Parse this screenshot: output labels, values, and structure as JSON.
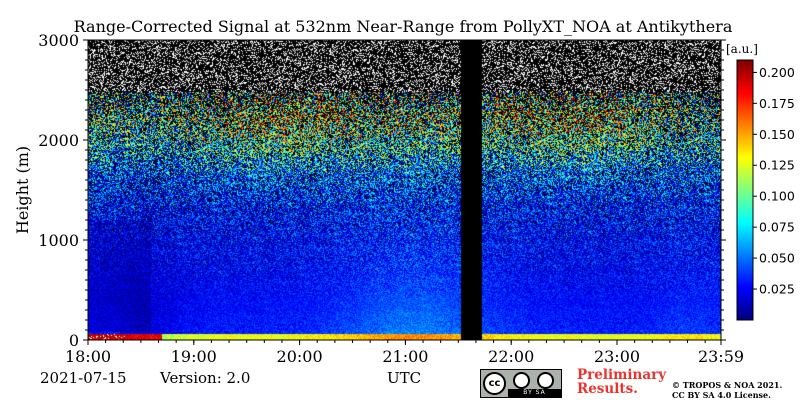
{
  "chart_data": {
    "type": "heatmap",
    "title": "Range-Corrected Signal at 532nm Near-Range from PollyXT_NOA at Antikythera",
    "xlabel": "UTC",
    "ylabel": "Height (m)",
    "x_tick_labels": [
      "18:00",
      "19:00",
      "20:00",
      "21:00",
      "22:00",
      "23:00",
      "23:59"
    ],
    "x_tick_hours": [
      18,
      19,
      20,
      21,
      22,
      23,
      23.983
    ],
    "xlim_hours": [
      18,
      23.983
    ],
    "y_ticks": [
      0,
      1000,
      2000,
      3000
    ],
    "ylim": [
      0,
      3000
    ],
    "data_gap_hours": [
      21.53,
      21.72
    ],
    "colorbar": {
      "unit": "[a.u.]",
      "ticks": [
        0.025,
        0.05,
        0.075,
        0.1,
        0.125,
        0.15,
        0.175,
        0.2
      ],
      "tick_labels": [
        "0.025",
        "0.050",
        "0.075",
        "0.100",
        "0.125",
        "0.150",
        "0.175",
        "0.200"
      ],
      "range": [
        0,
        0.21
      ],
      "colormap": "jet"
    }
  },
  "footer": {
    "date": "2021-07-15",
    "version": "Version: 2.0",
    "preliminary_line1": "Preliminary",
    "preliminary_line2": "Results.",
    "copyright_line1": "© TROPOS & NOA 2021.",
    "copyright_line2": "CC BY SA 4.0 License.",
    "cc_badge_text": "cc",
    "cc_badge_label": "BY   SA"
  }
}
